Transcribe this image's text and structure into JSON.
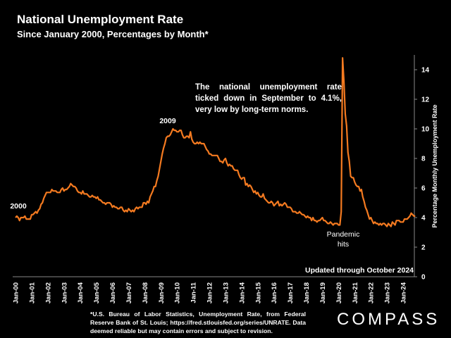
{
  "chart_data": {
    "type": "line",
    "title": "National Unemployment Rate",
    "subtitle": "Since January 2000, Percentages by Month*",
    "y_axis_label": "Percentage Monthly Unemployment Rate",
    "annotations": [
      "2000",
      "2009",
      "The national unemployment rate ticked down in September to 4.1%, very low by long-term norms.",
      "Pandemic",
      "hits",
      "Updated through October 2024"
    ],
    "footnote": "*U.S. Bureau of Labor Statistics, Unemployment Rate, from Federal Reserve Bank of St. Louis; https://fred.stlouisfed.org/series/UNRATE. Data deemed reliable but may contain errors and subject to revision.",
    "brand": "COMPASS",
    "color": "#f47a20",
    "ylim": [
      0,
      15
    ],
    "yticks": [
      0,
      2,
      4,
      6,
      8,
      10,
      12,
      14
    ],
    "categories": [
      "Jan-00",
      null,
      null,
      null,
      null,
      null,
      null,
      null,
      null,
      null,
      null,
      null,
      "Jan-01",
      null,
      null,
      null,
      null,
      null,
      null,
      null,
      null,
      null,
      null,
      null,
      "Jan-02",
      null,
      null,
      null,
      null,
      null,
      null,
      null,
      null,
      null,
      null,
      null,
      "Jan-03",
      null,
      null,
      null,
      null,
      null,
      null,
      null,
      null,
      null,
      null,
      null,
      "Jan-04",
      null,
      null,
      null,
      null,
      null,
      null,
      null,
      null,
      null,
      null,
      null,
      "Jan-05",
      null,
      null,
      null,
      null,
      null,
      null,
      null,
      null,
      null,
      null,
      null,
      "Jan-06",
      null,
      null,
      null,
      null,
      null,
      null,
      null,
      null,
      null,
      null,
      null,
      "Jan-07",
      null,
      null,
      null,
      null,
      null,
      null,
      null,
      null,
      null,
      null,
      null,
      "Jan-08",
      null,
      null,
      null,
      null,
      null,
      null,
      null,
      null,
      null,
      null,
      null,
      "Jan-09",
      null,
      null,
      null,
      null,
      null,
      null,
      null,
      null,
      null,
      null,
      null,
      "Jan-10",
      null,
      null,
      null,
      null,
      null,
      null,
      null,
      null,
      null,
      null,
      null,
      "Jan-11",
      null,
      null,
      null,
      null,
      null,
      null,
      null,
      null,
      null,
      null,
      null,
      "Jan-12",
      null,
      null,
      null,
      null,
      null,
      null,
      null,
      null,
      null,
      null,
      null,
      "Jan-13",
      null,
      null,
      null,
      null,
      null,
      null,
      null,
      null,
      null,
      null,
      null,
      "Jan-14",
      null,
      null,
      null,
      null,
      null,
      null,
      null,
      null,
      null,
      null,
      null,
      "Jan-15",
      null,
      null,
      null,
      null,
      null,
      null,
      null,
      null,
      null,
      null,
      null,
      "Jan-16",
      null,
      null,
      null,
      null,
      null,
      null,
      null,
      null,
      null,
      null,
      null,
      "Jan-17",
      null,
      null,
      null,
      null,
      null,
      null,
      null,
      null,
      null,
      null,
      null,
      "Jan-18",
      null,
      null,
      null,
      null,
      null,
      null,
      null,
      null,
      null,
      null,
      null,
      "Jan-19",
      null,
      null,
      null,
      null,
      null,
      null,
      null,
      null,
      null,
      null,
      null,
      "Jan-20",
      null,
      null,
      null,
      null,
      null,
      null,
      null,
      null,
      null,
      null,
      null,
      "Jan-21",
      null,
      null,
      null,
      null,
      null,
      null,
      null,
      null,
      null,
      null,
      null,
      "Jan-22",
      null,
      null,
      null,
      null,
      null,
      null,
      null,
      null,
      null,
      null,
      null,
      "Jan-23",
      null,
      null,
      null,
      null,
      null,
      null,
      null,
      null,
      null,
      null,
      null,
      "Jan-24",
      null,
      null,
      null,
      null,
      null,
      null,
      null,
      null,
      null
    ],
    "values": [
      4.0,
      4.1,
      4.0,
      3.8,
      4.0,
      4.0,
      4.0,
      4.1,
      3.9,
      3.9,
      3.9,
      3.9,
      4.2,
      4.2,
      4.3,
      4.4,
      4.3,
      4.5,
      4.6,
      4.9,
      5.0,
      5.3,
      5.5,
      5.7,
      5.7,
      5.7,
      5.7,
      5.9,
      5.8,
      5.8,
      5.8,
      5.7,
      5.7,
      5.7,
      5.9,
      6.0,
      5.8,
      5.9,
      5.9,
      6.0,
      6.1,
      6.3,
      6.2,
      6.1,
      6.1,
      6.0,
      5.8,
      5.7,
      5.7,
      5.6,
      5.8,
      5.6,
      5.6,
      5.6,
      5.5,
      5.4,
      5.4,
      5.5,
      5.4,
      5.4,
      5.3,
      5.4,
      5.2,
      5.2,
      5.1,
      5.0,
      5.0,
      4.9,
      5.0,
      5.0,
      5.0,
      4.9,
      4.7,
      4.8,
      4.7,
      4.7,
      4.6,
      4.6,
      4.7,
      4.7,
      4.5,
      4.4,
      4.5,
      4.4,
      4.6,
      4.5,
      4.4,
      4.5,
      4.4,
      4.6,
      4.7,
      4.6,
      4.7,
      4.7,
      4.7,
      5.0,
      5.0,
      4.9,
      5.1,
      5.0,
      5.4,
      5.6,
      5.8,
      6.1,
      6.1,
      6.5,
      6.8,
      7.3,
      7.8,
      8.3,
      8.7,
      9.0,
      9.4,
      9.5,
      9.5,
      9.6,
      9.8,
      10.0,
      9.9,
      9.9,
      9.8,
      9.8,
      9.9,
      9.9,
      9.6,
      9.4,
      9.4,
      9.5,
      9.5,
      9.4,
      9.8,
      9.3,
      9.1,
      9.0,
      9.0,
      9.1,
      9.0,
      9.1,
      9.0,
      9.0,
      9.0,
      8.8,
      8.6,
      8.5,
      8.3,
      8.3,
      8.2,
      8.2,
      8.2,
      8.2,
      8.2,
      8.0,
      7.8,
      7.8,
      7.7,
      7.9,
      8.0,
      7.7,
      7.5,
      7.6,
      7.5,
      7.5,
      7.3,
      7.2,
      7.2,
      7.2,
      6.9,
      6.7,
      6.6,
      6.7,
      6.7,
      6.2,
      6.3,
      6.1,
      6.2,
      6.1,
      5.9,
      5.7,
      5.8,
      5.6,
      5.7,
      5.5,
      5.4,
      5.4,
      5.6,
      5.3,
      5.2,
      5.1,
      5.0,
      5.0,
      5.1,
      5.0,
      4.8,
      4.9,
      5.0,
      5.1,
      4.8,
      4.9,
      4.8,
      4.9,
      5.0,
      4.9,
      4.7,
      4.7,
      4.7,
      4.6,
      4.4,
      4.4,
      4.4,
      4.3,
      4.3,
      4.4,
      4.3,
      4.2,
      4.2,
      4.1,
      4.0,
      4.1,
      4.0,
      4.0,
      3.8,
      4.0,
      3.8,
      3.8,
      3.7,
      3.8,
      3.8,
      3.9,
      4.0,
      3.8,
      3.8,
      3.7,
      3.6,
      3.6,
      3.7,
      3.6,
      3.5,
      3.6,
      3.6,
      3.6,
      3.5,
      3.5,
      4.4,
      14.8,
      13.2,
      11.0,
      10.2,
      8.4,
      7.8,
      6.8,
      6.7,
      6.7,
      6.4,
      6.2,
      6.1,
      6.1,
      5.8,
      5.9,
      5.4,
      5.1,
      4.7,
      4.5,
      4.2,
      3.9,
      4.0,
      3.8,
      3.6,
      3.7,
      3.6,
      3.6,
      3.5,
      3.6,
      3.5,
      3.6,
      3.6,
      3.5,
      3.4,
      3.6,
      3.5,
      3.4,
      3.7,
      3.6,
      3.5,
      3.8,
      3.8,
      3.8,
      3.7,
      3.7,
      3.7,
      3.9,
      3.9,
      3.9,
      4.0,
      4.1,
      4.3,
      4.2,
      4.1,
      4.1
    ]
  }
}
